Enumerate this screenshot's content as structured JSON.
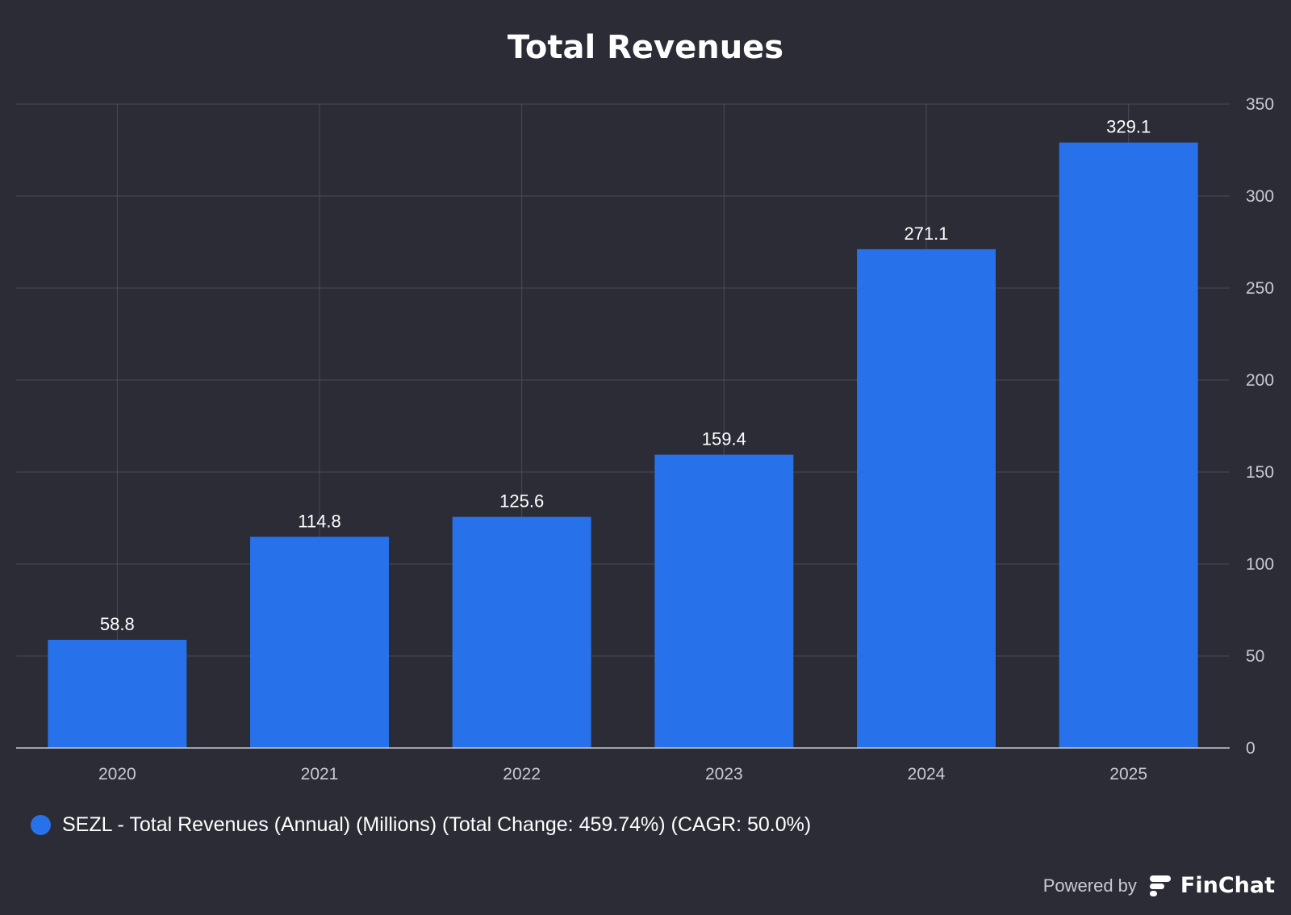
{
  "chart_data": {
    "type": "bar",
    "title": "Total Revenues",
    "categories": [
      "2020",
      "2021",
      "2022",
      "2023",
      "2024",
      "2025"
    ],
    "series": [
      {
        "name": "SEZL - Total Revenues (Annual) (Millions) (Total Change: 459.74%) (CAGR: 50.0%)",
        "values": [
          58.8,
          114.8,
          125.6,
          159.4,
          271.1,
          329.1
        ]
      }
    ],
    "ylim": [
      0,
      350
    ],
    "yticks": [
      0,
      50,
      100,
      150,
      200,
      250,
      300,
      350
    ],
    "y_axis_side": "right",
    "grid": true,
    "legend_position": "bottom-left",
    "xlabel": "",
    "ylabel": ""
  },
  "colors": {
    "background": "#2b2c35",
    "bar": "#2772ea",
    "grid": "#4a4b55",
    "axis_text": "#c9cad1",
    "label_text": "#ffffff"
  },
  "footer": {
    "powered_by": "Powered by",
    "brand_name": "FinChat",
    "brand_icon": "finchat-logo-icon"
  }
}
